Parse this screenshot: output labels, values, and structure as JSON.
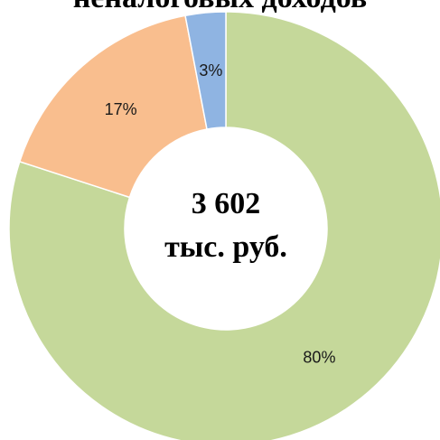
{
  "chart_data": {
    "type": "pie",
    "title": "неналоговых доходов",
    "center_value": "3 602",
    "center_unit": "тыс. руб.",
    "slices": [
      {
        "label": "80%",
        "value": 80,
        "color": "#c5d89a"
      },
      {
        "label": "17%",
        "value": 17,
        "color": "#f9be8e"
      },
      {
        "label": "3%",
        "value": 3,
        "color": "#8fb4e2"
      }
    ]
  }
}
